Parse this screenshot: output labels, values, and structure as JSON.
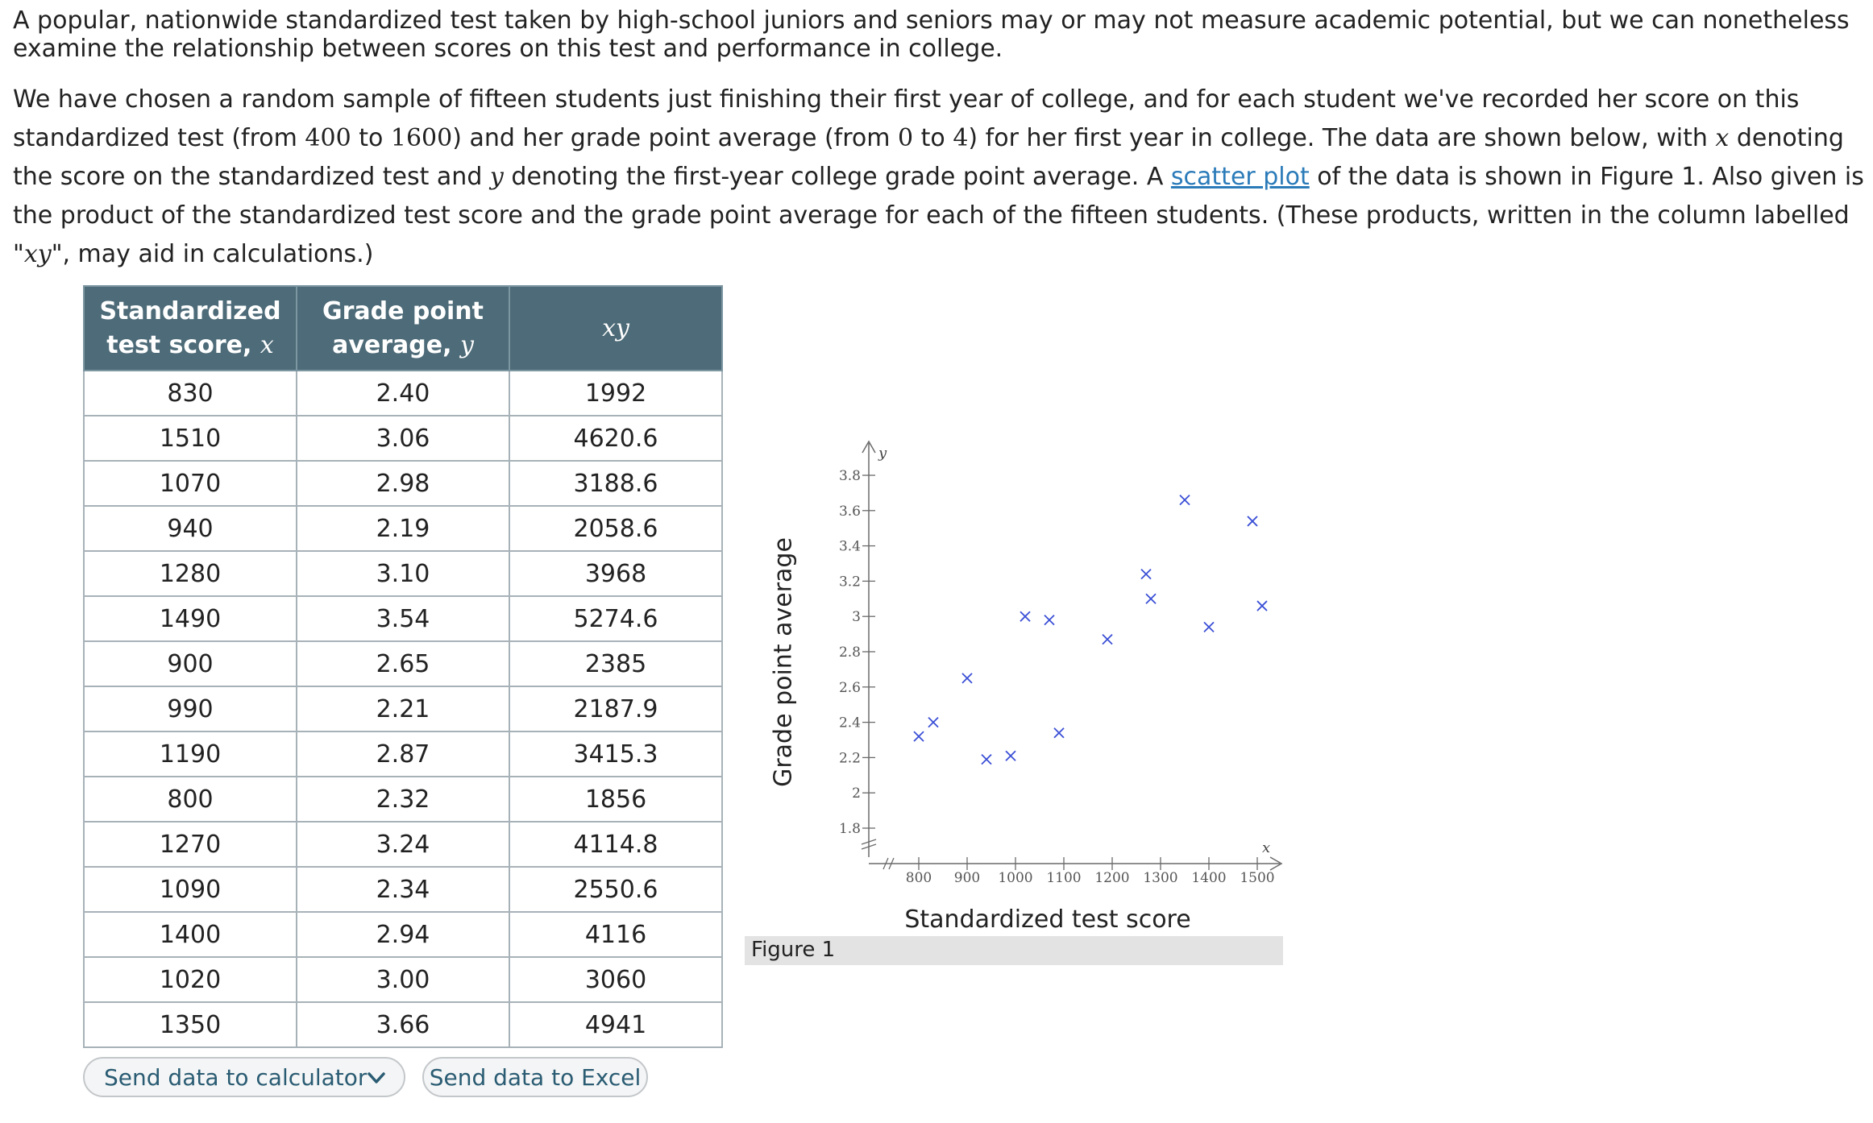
{
  "intro": "A popular, nationwide standardized test taken by high-school juniors and seniors may or may not measure academic potential, but we can nonetheless examine the relationship between scores on this test and performance in college.",
  "para": {
    "t1": "We have chosen a random sample of fifteen students just finishing their first year of college, and for each student we've recorded her score on this standardized test (from ",
    "n400": "400",
    "t2": " to ",
    "n1600": "1600",
    "t3": ") and her grade point average (from ",
    "n0": "0",
    "t4": " to ",
    "n4": "4",
    "t5": ") for her first year in college. The data are shown below, with ",
    "x": "x",
    "t6": " denoting the score on the standardized test and ",
    "y": "y",
    "t7": " denoting the first-year college grade point average. A ",
    "link": "scatter plot",
    "t8": " of the data is shown in Figure 1. Also given is the product of the standardized test score and the grade point average for each of the fifteen students. (These products, written in the column labelled \"",
    "xy": "xy",
    "t9": "\", may aid in calculations.)"
  },
  "table": {
    "headers": {
      "c1_line1": "Standardized",
      "c1_line2": "test score, ",
      "c1_var": "x",
      "c2_line1": "Grade point",
      "c2_line2": "average, ",
      "c2_var": "y",
      "c3": "xy"
    },
    "rows": [
      [
        "830",
        "2.40",
        "1992"
      ],
      [
        "1510",
        "3.06",
        "4620.6"
      ],
      [
        "1070",
        "2.98",
        "3188.6"
      ],
      [
        "940",
        "2.19",
        "2058.6"
      ],
      [
        "1280",
        "3.10",
        "3968"
      ],
      [
        "1490",
        "3.54",
        "5274.6"
      ],
      [
        "900",
        "2.65",
        "2385"
      ],
      [
        "990",
        "2.21",
        "2187.9"
      ],
      [
        "1190",
        "2.87",
        "3415.3"
      ],
      [
        "800",
        "2.32",
        "1856"
      ],
      [
        "1270",
        "3.24",
        "4114.8"
      ],
      [
        "1090",
        "2.34",
        "2550.6"
      ],
      [
        "1400",
        "2.94",
        "4116"
      ],
      [
        "1020",
        "3.00",
        "3060"
      ],
      [
        "1350",
        "3.66",
        "4941"
      ]
    ]
  },
  "buttons": {
    "calc": "Send data to calculator",
    "excel": "Send data to Excel"
  },
  "figure": {
    "caption": "Figure 1"
  },
  "chart_data": {
    "type": "scatter",
    "title": "",
    "xlabel": "Standardized test score",
    "ylabel": "Grade point average",
    "x_axis_var": "x",
    "y_axis_var": "y",
    "xlim": [
      800,
      1500
    ],
    "ylim": [
      1.8,
      3.8
    ],
    "xticks": [
      800,
      900,
      1000,
      1100,
      1200,
      1300,
      1400,
      1500
    ],
    "yticks": [
      1.8,
      2,
      2.2,
      2.4,
      2.6,
      2.8,
      3,
      3.2,
      3.4,
      3.6,
      3.8
    ],
    "xtick_labels": [
      "800",
      "900",
      "1000",
      "1100",
      "1200",
      "1300",
      "1400",
      "1500"
    ],
    "ytick_labels": [
      "1.8",
      "2",
      "2.2",
      "2.4",
      "2.6",
      "2.8",
      "3",
      "3.2",
      "3.4",
      "3.6",
      "3.8"
    ],
    "axis_break": true,
    "grid": false,
    "marker": "x",
    "marker_color": "#3a4fd6",
    "x": [
      830,
      1510,
      1070,
      940,
      1280,
      1490,
      900,
      990,
      1190,
      800,
      1270,
      1090,
      1400,
      1020,
      1350
    ],
    "y": [
      2.4,
      3.06,
      2.98,
      2.19,
      3.1,
      3.54,
      2.65,
      2.21,
      2.87,
      2.32,
      3.24,
      2.34,
      2.94,
      3.0,
      3.66
    ]
  }
}
